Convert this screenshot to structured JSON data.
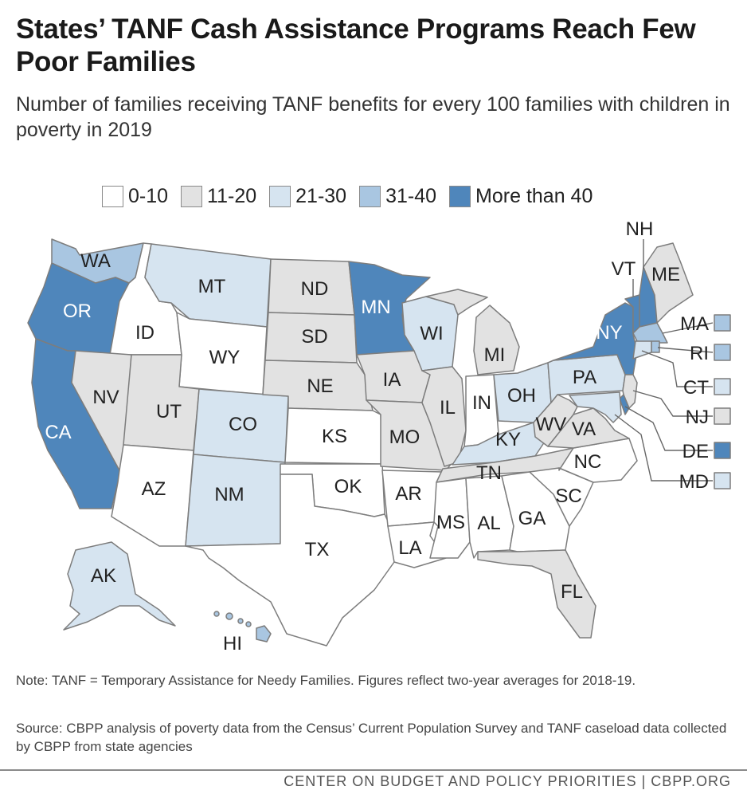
{
  "title": "States’ TANF Cash Assistance Programs Reach Few Poor Families",
  "subtitle": "Number of families receiving TANF benefits for every 100 families with children in poverty in 2019",
  "legend": [
    {
      "label": "0-10",
      "color": "#ffffff"
    },
    {
      "label": "11-20",
      "color": "#e2e2e2"
    },
    {
      "label": "21-30",
      "color": "#d6e4f0"
    },
    {
      "label": "31-40",
      "color": "#a9c6e1"
    },
    {
      "label": "More than 40",
      "color": "#4f86bb"
    }
  ],
  "states": {
    "WA": {
      "label": "WA",
      "category": "31-40"
    },
    "OR": {
      "label": "OR",
      "category": "More than 40"
    },
    "CA": {
      "label": "CA",
      "category": "More than 40"
    },
    "ID": {
      "label": "ID",
      "category": "0-10"
    },
    "NV": {
      "label": "NV",
      "category": "11-20"
    },
    "MT": {
      "label": "MT",
      "category": "21-30"
    },
    "WY": {
      "label": "WY",
      "category": "0-10"
    },
    "UT": {
      "label": "UT",
      "category": "11-20"
    },
    "CO": {
      "label": "CO",
      "category": "21-30"
    },
    "AZ": {
      "label": "AZ",
      "category": "0-10"
    },
    "NM": {
      "label": "NM",
      "category": "21-30"
    },
    "ND": {
      "label": "ND",
      "category": "11-20"
    },
    "SD": {
      "label": "SD",
      "category": "11-20"
    },
    "NE": {
      "label": "NE",
      "category": "11-20"
    },
    "KS": {
      "label": "KS",
      "category": "0-10"
    },
    "OK": {
      "label": "OK",
      "category": "0-10"
    },
    "TX": {
      "label": "TX",
      "category": "0-10"
    },
    "MN": {
      "label": "MN",
      "category": "More than 40"
    },
    "IA": {
      "label": "IA",
      "category": "11-20"
    },
    "MO": {
      "label": "MO",
      "category": "11-20"
    },
    "AR": {
      "label": "AR",
      "category": "0-10"
    },
    "LA": {
      "label": "LA",
      "category": "0-10"
    },
    "WI": {
      "label": "WI",
      "category": "21-30"
    },
    "IL": {
      "label": "IL",
      "category": "11-20"
    },
    "MI": {
      "label": "MI",
      "category": "11-20"
    },
    "IN": {
      "label": "IN",
      "category": "0-10"
    },
    "OH": {
      "label": "OH",
      "category": "21-30"
    },
    "KY": {
      "label": "KY",
      "category": "21-30"
    },
    "TN": {
      "label": "TN",
      "category": "11-20"
    },
    "MS": {
      "label": "MS",
      "category": "0-10"
    },
    "AL": {
      "label": "AL",
      "category": "0-10"
    },
    "GA": {
      "label": "GA",
      "category": "0-10"
    },
    "FL": {
      "label": "FL",
      "category": "11-20"
    },
    "SC": {
      "label": "SC",
      "category": "0-10"
    },
    "NC": {
      "label": "NC",
      "category": "0-10"
    },
    "VA": {
      "label": "VA",
      "category": "11-20"
    },
    "WV": {
      "label": "WV",
      "category": "11-20"
    },
    "PA": {
      "label": "PA",
      "category": "21-30"
    },
    "NY": {
      "label": "NY",
      "category": "More than 40"
    },
    "VT": {
      "label": "VT",
      "category": "More than 40"
    },
    "NH": {
      "label": "NH",
      "category": "More than 40"
    },
    "ME": {
      "label": "ME",
      "category": "11-20"
    },
    "MA": {
      "label": "MA",
      "category": "31-40"
    },
    "RI": {
      "label": "RI",
      "category": "31-40"
    },
    "CT": {
      "label": "CT",
      "category": "21-30"
    },
    "NJ": {
      "label": "NJ",
      "category": "11-20"
    },
    "DE": {
      "label": "DE",
      "category": "More than 40"
    },
    "MD": {
      "label": "MD",
      "category": "21-30"
    },
    "AK": {
      "label": "AK",
      "category": "21-30"
    },
    "HI": {
      "label": "HI",
      "category": "31-40"
    }
  },
  "note": "Note: TANF = Temporary Assistance for Needy Families. Figures reflect two-year averages for 2018-19.",
  "source": "Source: CBPP analysis of poverty data from the Census’ Current Population Survey and TANF caseload data collected by CBPP from state agencies",
  "credit": "CENTER ON BUDGET AND POLICY PRIORITIES | CBPP.ORG"
}
